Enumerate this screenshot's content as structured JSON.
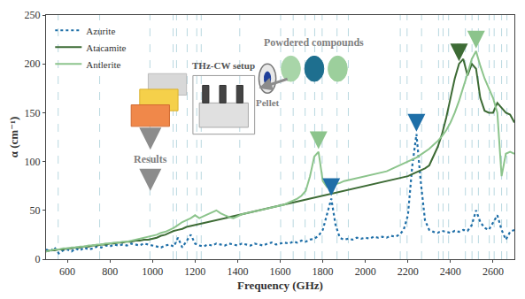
{
  "chart_data": {
    "type": "line",
    "x_label": "Frequency (GHz)",
    "y_label": "α (cm⁻¹)",
    "xlim": [
      500,
      2700
    ],
    "ylim": [
      0,
      250
    ],
    "xticks": [
      600,
      800,
      1000,
      1200,
      1400,
      1600,
      1800,
      2000,
      2200,
      2400,
      2600
    ],
    "yticks": [
      0,
      50,
      100,
      150,
      200,
      250
    ],
    "grid": false,
    "legend": "upper left",
    "x": [
      500,
      520,
      540,
      560,
      580,
      600,
      620,
      640,
      660,
      680,
      700,
      720,
      740,
      760,
      780,
      800,
      820,
      840,
      860,
      880,
      900,
      920,
      940,
      960,
      980,
      1000,
      1020,
      1040,
      1060,
      1080,
      1100,
      1120,
      1140,
      1160,
      1180,
      1200,
      1220,
      1240,
      1260,
      1280,
      1300,
      1320,
      1340,
      1360,
      1380,
      1400,
      1420,
      1440,
      1460,
      1480,
      1500,
      1520,
      1540,
      1560,
      1580,
      1600,
      1620,
      1640,
      1660,
      1680,
      1700,
      1720,
      1740,
      1760,
      1780,
      1800,
      1820,
      1840,
      1860,
      1880,
      1900,
      1920,
      1940,
      1960,
      1980,
      2000,
      2020,
      2040,
      2060,
      2080,
      2100,
      2120,
      2140,
      2160,
      2180,
      2200,
      2220,
      2240,
      2260,
      2280,
      2300,
      2320,
      2340,
      2360,
      2380,
      2400,
      2420,
      2440,
      2460,
      2480,
      2500,
      2520,
      2540,
      2560,
      2580,
      2600,
      2620,
      2640,
      2660,
      2680,
      2700
    ],
    "series": [
      {
        "name": "Azurite",
        "color": "#1f6fa8",
        "line_style": "dotted",
        "values": [
          10,
          8,
          12,
          6,
          9,
          10,
          8,
          11,
          9,
          12,
          10,
          11,
          13,
          12,
          14,
          13,
          15,
          14,
          15,
          14,
          16,
          15,
          14,
          16,
          15,
          14,
          13,
          12,
          14,
          15,
          13,
          22,
          12,
          18,
          25,
          16,
          14,
          13,
          15,
          14,
          16,
          15,
          14,
          16,
          15,
          14,
          16,
          15,
          14,
          16,
          15,
          14,
          16,
          17,
          15,
          16,
          17,
          16,
          18,
          17,
          19,
          18,
          20,
          21,
          24,
          30,
          45,
          62,
          35,
          22,
          20,
          21,
          20,
          22,
          21,
          22,
          21,
          23,
          22,
          23,
          22,
          24,
          23,
          25,
          30,
          45,
          95,
          128,
          80,
          40,
          30,
          28,
          27,
          29,
          28,
          27,
          29,
          28,
          30,
          29,
          35,
          50,
          38,
          32,
          30,
          38,
          45,
          30,
          20,
          28,
          30
        ]
      },
      {
        "name": "Atacamite",
        "color": "#3d6b35",
        "line_style": "solid",
        "values": [
          8,
          9,
          9,
          10,
          10,
          11,
          11,
          12,
          12,
          13,
          13,
          14,
          14,
          15,
          15,
          16,
          16,
          17,
          17,
          18,
          18,
          19,
          19,
          20,
          20,
          21,
          22,
          24,
          25,
          27,
          29,
          30,
          31,
          33,
          34,
          35,
          36,
          37,
          38,
          39,
          40,
          41,
          42,
          43,
          44,
          45,
          46,
          47,
          48,
          49,
          50,
          51,
          52,
          53,
          54,
          55,
          56,
          57,
          58,
          59,
          60,
          61,
          62,
          63,
          64,
          65,
          66,
          67,
          68,
          69,
          70,
          71,
          72,
          73,
          74,
          75,
          76,
          77,
          78,
          79,
          80,
          81,
          82,
          83,
          84,
          85,
          87,
          89,
          91,
          93,
          96,
          105,
          115,
          128,
          145,
          165,
          185,
          200,
          205,
          188,
          200,
          195,
          165,
          152,
          150,
          150,
          160,
          155,
          150,
          148,
          140
        ]
      },
      {
        "name": "Antlerite",
        "color": "#8cc48c",
        "line_style": "solid",
        "values": [
          8,
          9,
          10,
          10,
          11,
          11,
          12,
          12,
          13,
          13,
          14,
          14,
          15,
          15,
          16,
          16,
          17,
          17,
          18,
          18,
          19,
          20,
          21,
          22,
          23,
          24,
          25,
          27,
          28,
          30,
          32,
          35,
          38,
          40,
          42,
          45,
          42,
          44,
          46,
          48,
          50,
          47,
          45,
          43,
          42,
          44,
          46,
          47,
          48,
          49,
          50,
          51,
          52,
          53,
          54,
          55,
          56,
          58,
          60,
          62,
          65,
          70,
          85,
          105,
          110,
          80,
          74,
          75,
          77,
          78,
          80,
          81,
          82,
          83,
          84,
          85,
          86,
          87,
          88,
          89,
          90,
          92,
          94,
          96,
          98,
          100,
          102,
          104,
          107,
          110,
          113,
          117,
          121,
          126,
          132,
          140,
          150,
          162,
          175,
          190,
          205,
          213,
          198,
          185,
          175,
          165,
          150,
          85,
          108,
          110,
          108
        ]
      }
    ],
    "reference_lines": [
      557,
      752,
      988,
      1097,
      1113,
      1163,
      1208,
      1229,
      1410,
      1602,
      1661,
      1717,
      1762,
      1797,
      1867,
      1920,
      2164,
      2196,
      2264,
      2344,
      2365,
      2391,
      2470,
      2501,
      2531,
      2582,
      2605,
      2640,
      2665
    ],
    "peak_markers": [
      {
        "series": "Azurite",
        "x": 1840
      },
      {
        "series": "Azurite",
        "x": 2240
      },
      {
        "series": "Antlerite",
        "x": 1780
      },
      {
        "series": "Antlerite",
        "x": 2520
      },
      {
        "series": "Atacamite",
        "x": 2440
      }
    ],
    "inset_labels": {
      "setup": "THz-CW setup",
      "powders": "Powdered compounds",
      "pellet": "Pellet",
      "results": "Results"
    }
  }
}
